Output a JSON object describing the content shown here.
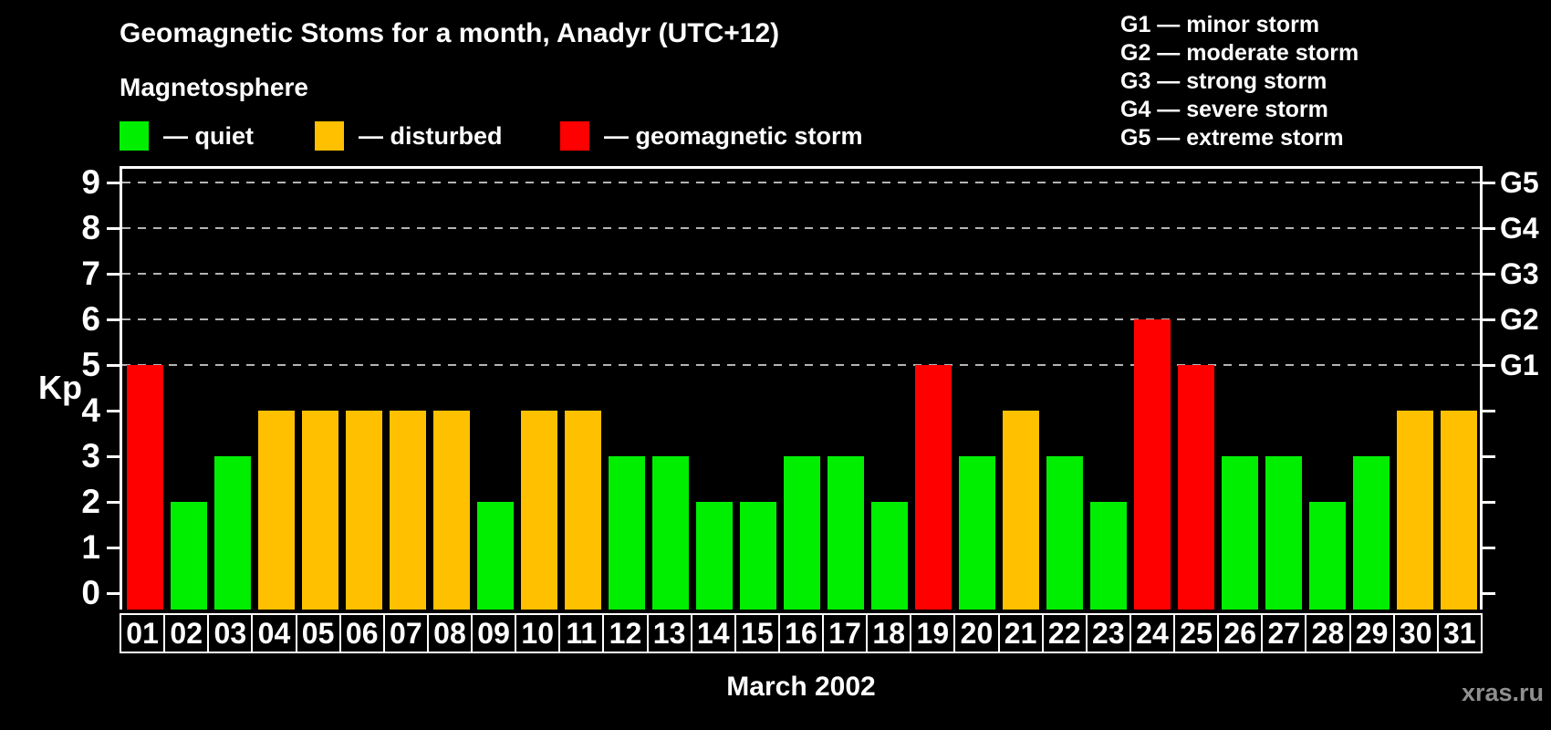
{
  "page": {
    "background": "#000000"
  },
  "header": {
    "title": "Geomagnetic Stoms for a month, Anadyr (UTC+12)",
    "subtitle": "Magnetosphere"
  },
  "legend": {
    "items": [
      {
        "name": "quiet",
        "label": "— quiet",
        "color": "#00ee00"
      },
      {
        "name": "disturbed",
        "label": "— disturbed",
        "color": "#ffc000"
      },
      {
        "name": "storm",
        "label": "— geomagnetic storm",
        "color": "#ff0000"
      }
    ]
  },
  "storm_scale_legend": {
    "lines": [
      "G1 — minor storm",
      "G2 — moderate storm",
      "G3 — strong storm",
      "G4 — severe storm",
      "G5 — extreme storm"
    ]
  },
  "footer": {
    "caption": "March 2002",
    "watermark": "xras.ru"
  },
  "chart_data": {
    "type": "bar",
    "title": "Geomagnetic Stoms for a month, Anadyr (UTC+12)",
    "ylabel": "Kp",
    "xlabel": "March 2002",
    "ylim": [
      0,
      9
    ],
    "yticks": [
      0,
      1,
      2,
      3,
      4,
      5,
      6,
      7,
      8,
      9
    ],
    "gridlines": [
      5,
      6,
      7,
      8,
      9
    ],
    "grid_style": "dashed horizontal lines at Kp 5-9",
    "legend_position": "top-left",
    "right_axis": {
      "ticks": [
        {
          "value": 5,
          "label": "G1"
        },
        {
          "value": 6,
          "label": "G2"
        },
        {
          "value": 7,
          "label": "G3"
        },
        {
          "value": 8,
          "label": "G4"
        },
        {
          "value": 9,
          "label": "G5"
        }
      ]
    },
    "categories": [
      "01",
      "02",
      "03",
      "04",
      "05",
      "06",
      "07",
      "08",
      "09",
      "10",
      "11",
      "12",
      "13",
      "14",
      "15",
      "16",
      "17",
      "18",
      "19",
      "20",
      "21",
      "22",
      "23",
      "24",
      "25",
      "26",
      "27",
      "28",
      "29",
      "30",
      "31"
    ],
    "values": [
      5,
      2,
      3,
      4,
      4,
      4,
      4,
      4,
      2,
      4,
      4,
      3,
      3,
      2,
      2,
      3,
      3,
      2,
      5,
      3,
      4,
      3,
      2,
      6,
      5,
      3,
      3,
      2,
      3,
      4,
      4
    ],
    "statuses": [
      "storm",
      "quiet",
      "quiet",
      "disturbed",
      "disturbed",
      "disturbed",
      "disturbed",
      "disturbed",
      "quiet",
      "disturbed",
      "disturbed",
      "quiet",
      "quiet",
      "quiet",
      "quiet",
      "quiet",
      "quiet",
      "quiet",
      "storm",
      "quiet",
      "disturbed",
      "quiet",
      "quiet",
      "storm",
      "storm",
      "quiet",
      "quiet",
      "quiet",
      "quiet",
      "disturbed",
      "disturbed"
    ],
    "status_colors": {
      "quiet": "#00ee00",
      "disturbed": "#ffc000",
      "storm": "#ff0000"
    }
  }
}
